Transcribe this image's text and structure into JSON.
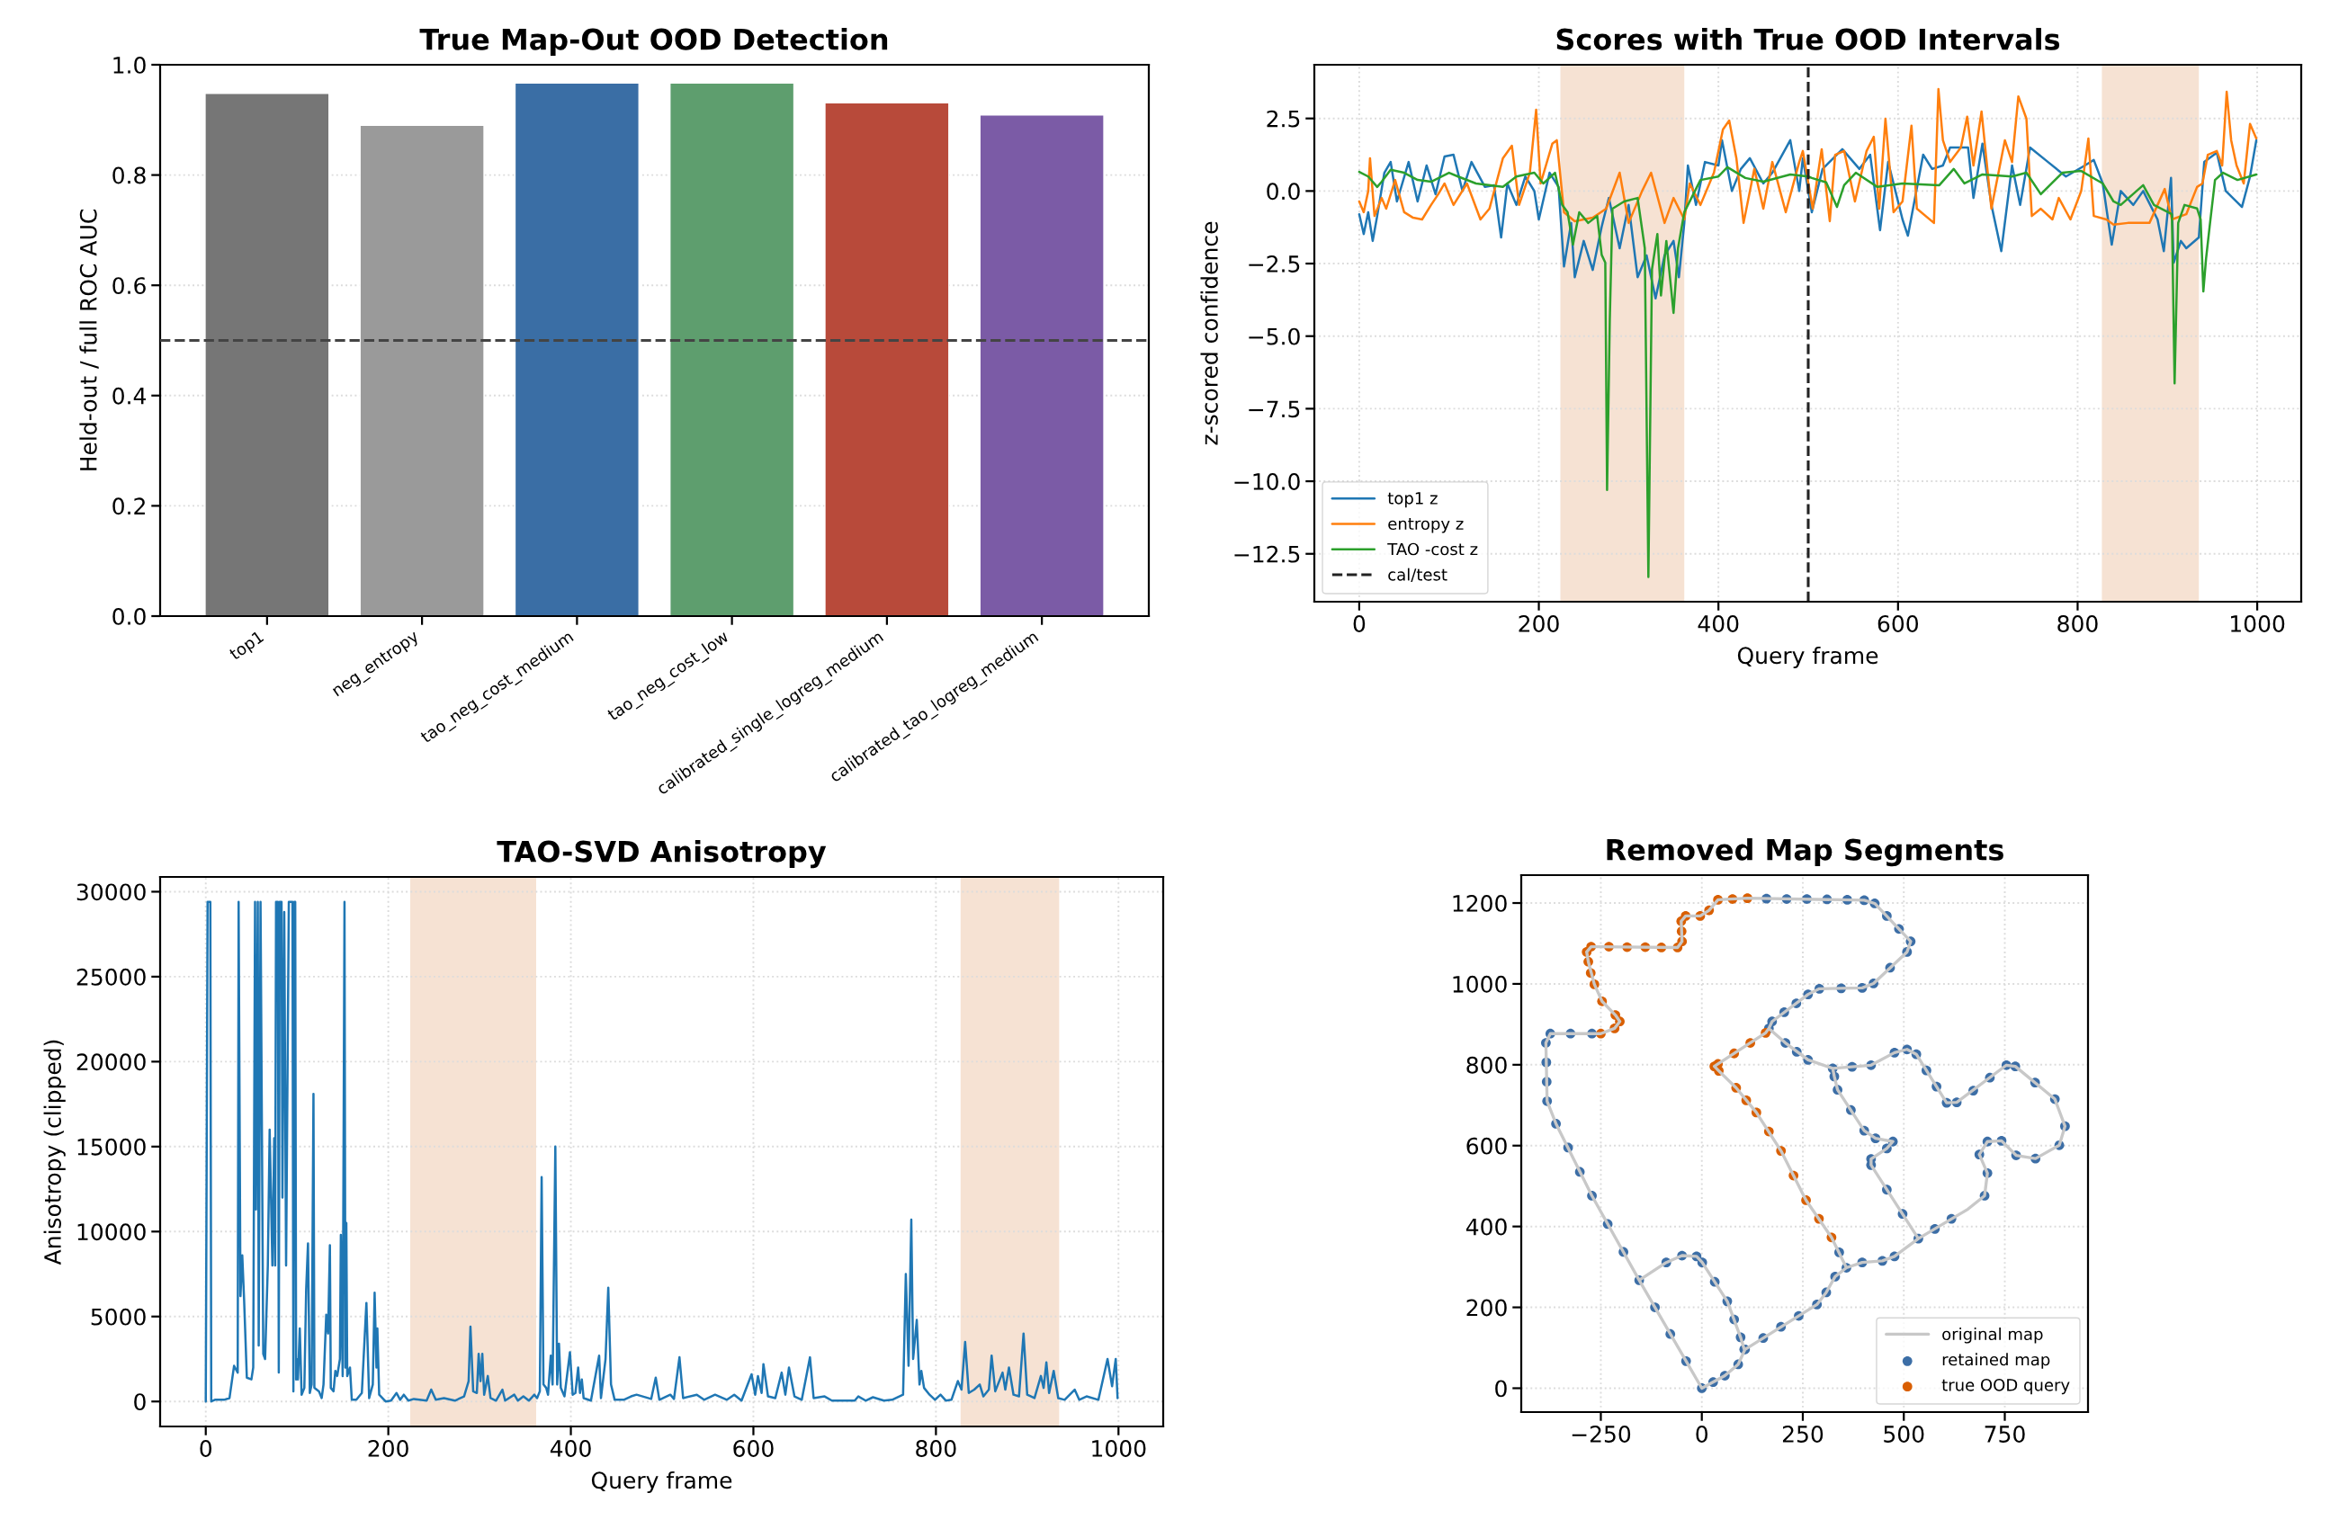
{
  "chart_data": [
    {
      "type": "bar",
      "title": "True Map-Out OOD Detection",
      "ylabel": "Held-out / full ROC AUC",
      "categories": [
        "top1",
        "neg_entropy",
        "tao_neg_cost_medium",
        "tao_neg_cost_low",
        "calibrated_single_logreg_medium",
        "calibrated_tao_logreg_medium"
      ],
      "values": [
        0.948,
        0.89,
        0.967,
        0.967,
        0.931,
        0.909
      ],
      "colors": [
        "#767676",
        "#9a9a9a",
        "#3a6ea5",
        "#5e9e6e",
        "#b84a3a",
        "#7b5ba6"
      ],
      "ylim": [
        0,
        1
      ],
      "yticks": [
        {
          "value": 0,
          "label": "0.0"
        },
        0.2,
        0.4,
        0.6,
        0.8,
        {
          "value": 1,
          "label": "1.0"
        }
      ],
      "grid": "y",
      "ref_lines": [
        {
          "axis": "y",
          "value": 0.5,
          "color": "#444444",
          "line_style": "dashed"
        }
      ]
    },
    {
      "type": "line",
      "title": "Scores with True OOD Intervals",
      "xlabel": "Query frame",
      "ylabel": "z-scored confidence",
      "series": [
        {
          "name": "top1 z",
          "color": "#1f77b4",
          "x": [
            0,
            5,
            10,
            15,
            20,
            28,
            35,
            42,
            55,
            65,
            75,
            85,
            95,
            105,
            115,
            125,
            140,
            150,
            158,
            165,
            175,
            185,
            195,
            200,
            212,
            222,
            228,
            236,
            240,
            250,
            260,
            270,
            278,
            290,
            300,
            310,
            320,
            330,
            340,
            350,
            356,
            362,
            366,
            375,
            385,
            400,
            404,
            415,
            425,
            435,
            450,
            460,
            480,
            490,
            494,
            504,
            516,
            538,
            557,
            569,
            580,
            589,
            605,
            611,
            628,
            638,
            650,
            658,
            678,
            684,
            694,
            704,
            715,
            727,
            736,
            747,
            767,
            787,
            808,
            818,
            828,
            838,
            848,
            862,
            873,
            889,
            896,
            904,
            907,
            915,
            921,
            935,
            941,
            955,
            965,
            983,
            992,
            999
          ],
          "values": [
            -0.8,
            -1.48,
            -0.73,
            -1.72,
            -0.86,
            0.63,
            1.0,
            -0.36,
            1.0,
            -0.36,
            0.88,
            -0.11,
            1.19,
            1.25,
            0,
            1.0,
            0.14,
            0.2,
            -1.6,
            0.26,
            -0.48,
            0.5,
            0,
            -0.98,
            0.63,
            0.14,
            -2.6,
            -1.1,
            -2.97,
            -1.72,
            -2.72,
            -1.23,
            -0.24,
            -1.97,
            -0.48,
            -2.97,
            -2.22,
            -3.7,
            -2.22,
            -1.72,
            -2.97,
            -1.1,
            0.88,
            -0.48,
            1.0,
            0.88,
            1.75,
            0,
            0.76,
            1.13,
            0.26,
            0.63,
            1.75,
            0,
            1.13,
            -0.73,
            0.76,
            1.44,
            0.76,
            1.25,
            -1.35,
            1.0,
            -0.98,
            -1.54,
            1.25,
            0.76,
            0.88,
            1.5,
            1.5,
            -0.24,
            1.63,
            -0.48,
            -2.07,
            0.88,
            -0.48,
            1.5,
            1.0,
            0.5,
            0.88,
            1.07,
            0.26,
            -1.85,
            0,
            -0.48,
            0,
            -0.98,
            -2.07,
            0.45,
            -2.47,
            -1.72,
            -1.97,
            -1.6,
            1.0,
            1.32,
            0,
            -0.55,
            0.5,
            1.75
          ]
        },
        {
          "name": "entropy z",
          "color": "#ff7f0e",
          "x": [
            0,
            5,
            10,
            12,
            17,
            25,
            30,
            40,
            50,
            60,
            70,
            80,
            88,
            95,
            105,
            120,
            135,
            145,
            160,
            170,
            178,
            190,
            197,
            202,
            215,
            220,
            228,
            240,
            260,
            275,
            290,
            300,
            315,
            325,
            340,
            350,
            362,
            368,
            380,
            395,
            405,
            412,
            420,
            428,
            440,
            450,
            460,
            475,
            490,
            494,
            505,
            515,
            524,
            530,
            540,
            552,
            565,
            573,
            579,
            586,
            595,
            605,
            615,
            621,
            640,
            645,
            650,
            658,
            670,
            677,
            684,
            693,
            704,
            719,
            727,
            734,
            743,
            749,
            759,
            772,
            779,
            792,
            804,
            812,
            818,
            832,
            840,
            856,
            880,
            897,
            905,
            921,
            933,
            939,
            945,
            955,
            961,
            966,
            971,
            977,
            985,
            992,
            999
          ],
          "values": [
            -0.36,
            -0.73,
            0,
            1.13,
            -0.86,
            -0.24,
            -0.61,
            0.38,
            -0.73,
            -0.92,
            -0.98,
            -0.48,
            -0.11,
            0.26,
            -0.48,
            0.26,
            -0.98,
            -0.61,
            1.13,
            1.56,
            -0.48,
            0.63,
            2.8,
            0.26,
            1.63,
            1.75,
            -0.73,
            -1.04,
            -0.92,
            -0.61,
            0.63,
            -1.1,
            0,
            0.63,
            -1.1,
            -0.24,
            -0.98,
            0.26,
            -0.48,
            0.63,
            2.12,
            2.43,
            1.13,
            -1.1,
            0.76,
            -0.61,
            1.0,
            -0.73,
            1.0,
            1.38,
            -0.61,
            1.44,
            -1.04,
            1.25,
            1.38,
            -0.36,
            1.38,
            1.87,
            -0.61,
            2.49,
            -0.73,
            -0.36,
            2.25,
            -0.61,
            -1.1,
            3.51,
            1.75,
            1.0,
            1.5,
            2.56,
            0.88,
            2.74,
            -0.61,
            1.75,
            1.0,
            3.26,
            2.49,
            -0.86,
            -0.61,
            -0.98,
            -0.24,
            -0.98,
            0,
            1.81,
            -0.86,
            -0.98,
            -1.16,
            -1.1,
            -1.1,
            0.07,
            -0.98,
            -0.8,
            0.14,
            0.26,
            1.25,
            1.38,
            0.88,
            3.42,
            1.75,
            0.88,
            0.26,
            2.31,
            1.81
          ]
        },
        {
          "name": "TAO -cost z",
          "color": "#2ca02c",
          "x": [
            0,
            10,
            20,
            25,
            35,
            50,
            65,
            80,
            100,
            110,
            130,
            160,
            175,
            195,
            205,
            218,
            226,
            232,
            238,
            245,
            255,
            265,
            270,
            274,
            276,
            279,
            282,
            295,
            310,
            318,
            322,
            326,
            332,
            336,
            342,
            350,
            355,
            362,
            380,
            400,
            410,
            430,
            450,
            480,
            500,
            504,
            520,
            532,
            540,
            553,
            577,
            605,
            646,
            662,
            674,
            694,
            727,
            743,
            759,
            783,
            804,
            828,
            840,
            848,
            873,
            885,
            905,
            908,
            912,
            919,
            933,
            937,
            940,
            943,
            947,
            953,
            962,
            978,
            999
          ],
          "values": [
            0.66,
            0.5,
            0.14,
            0.32,
            0.73,
            0.63,
            0.38,
            0.32,
            0.63,
            0.5,
            0.26,
            0.14,
            0.5,
            0.63,
            0.26,
            0.63,
            -0.48,
            -0.73,
            -1.85,
            -0.73,
            -1.1,
            -0.86,
            -2.2,
            -2.47,
            -10.3,
            -4.45,
            -0.61,
            -0.36,
            -0.24,
            -1.97,
            -13.3,
            -2.7,
            -1.48,
            -3.6,
            -1.72,
            -4.2,
            -1.97,
            -0.73,
            0.38,
            0.5,
            0.82,
            0.45,
            0.32,
            0.57,
            0.5,
            0.45,
            0.3,
            -0.55,
            0.2,
            0.63,
            0.14,
            0.26,
            0.2,
            0.76,
            0.26,
            0.57,
            0.5,
            0.63,
            -0.11,
            0.63,
            0.69,
            0.26,
            -0.36,
            -0.48,
            0.2,
            -0.48,
            -0.8,
            -6.63,
            -1.1,
            -0.48,
            -0.6,
            -0.98,
            -3.46,
            -2.34,
            -1.23,
            0.38,
            0.63,
            0.38,
            0.57
          ]
        },
        {
          "name": "cal/test",
          "type": "line",
          "color": "#222222",
          "line_style": "dashed",
          "x": [
            500,
            500
          ],
          "values": [
            -14.15,
            4.35
          ]
        }
      ],
      "xlim": [
        -50,
        1049
      ],
      "ylim": [
        -14.15,
        4.35
      ],
      "xticks": [
        0,
        200,
        400,
        600,
        800,
        1000
      ],
      "yticks": [
        {
          "value": -12.5,
          "label": "−12.5"
        },
        {
          "value": -10,
          "label": "−10.0"
        },
        {
          "value": -7.5,
          "label": "−7.5"
        },
        {
          "value": -5,
          "label": "−5.0"
        },
        {
          "value": -2.5,
          "label": "−2.5"
        },
        {
          "value": 0,
          "label": "0.0"
        },
        2.5
      ],
      "grid": true,
      "legend": "bottom left",
      "bands": [
        {
          "axis": "x",
          "from": 224,
          "to": 362,
          "color": "#f6e2d3"
        },
        {
          "axis": "x",
          "from": 827,
          "to": 935,
          "color": "#f6e2d3"
        }
      ]
    },
    {
      "type": "line",
      "title": "TAO-SVD Anisotropy",
      "xlabel": "Query frame",
      "ylabel": "Anisotropy (clipped)",
      "series": [
        {
          "color": "#1f77b4",
          "x": [
            0,
            2,
            5,
            6,
            10,
            20,
            26,
            31,
            35,
            36,
            38,
            40,
            42,
            45,
            50,
            52,
            54,
            55,
            57,
            58,
            60,
            63,
            65,
            68,
            70,
            73,
            75,
            76,
            77,
            79,
            80,
            81,
            83,
            84,
            86,
            88,
            91,
            95,
            96,
            97,
            98,
            99,
            100,
            101,
            103,
            105,
            108,
            110,
            112,
            114,
            116,
            118,
            119,
            124,
            127,
            129,
            132,
            134,
            136,
            137,
            140,
            142,
            144,
            147,
            148,
            150,
            152,
            153,
            154,
            155,
            158,
            160,
            165,
            171,
            176,
            179,
            183,
            185,
            187,
            188,
            190,
            197,
            203,
            209,
            213,
            217,
            222,
            228,
            242,
            247,
            252,
            261,
            273,
            283,
            288,
            290,
            293,
            297,
            299,
            301,
            303,
            305,
            309,
            312,
            318,
            325,
            328,
            338,
            342,
            348,
            354,
            360,
            363,
            366,
            368,
            370,
            373,
            375,
            378,
            380,
            383,
            385,
            387,
            389,
            393,
            399,
            402,
            405,
            408,
            410,
            412,
            414,
            422,
            431,
            433,
            438,
            441,
            444,
            448,
            458,
            466,
            472,
            488,
            493,
            497,
            509,
            513,
            519,
            523,
            538,
            546,
            558,
            571,
            579,
            587,
            598,
            602,
            605,
            609,
            611,
            616,
            624,
            631,
            635,
            639,
            645,
            653,
            662,
            666,
            678,
            686,
            711,
            715,
            723,
            731,
            743,
            752,
            764,
            767,
            770,
            773,
            775,
            779,
            782,
            784,
            787,
            793,
            799,
            805,
            811,
            817,
            824,
            828,
            832,
            836,
            842,
            848,
            852,
            858,
            861,
            865,
            873,
            876,
            880,
            885,
            891,
            896,
            900,
            908,
            915,
            918,
            921,
            924,
            929,
            934,
            941,
            952,
            957,
            965,
            978,
            988,
            993,
            997,
            999
          ],
          "values": [
            0,
            29400,
            29400,
            0,
            100,
            100,
            200,
            2100,
            1700,
            29400,
            6200,
            8600,
            6000,
            1400,
            1300,
            2000,
            29400,
            11300,
            29400,
            3300,
            29400,
            2800,
            2500,
            8000,
            16000,
            8000,
            15500,
            8000,
            29400,
            29400,
            1700,
            29400,
            29400,
            12000,
            28800,
            8000,
            29400,
            29400,
            600,
            29400,
            29400,
            1300,
            2500,
            1300,
            4300,
            400,
            800,
            6600,
            9300,
            500,
            1000,
            18100,
            800,
            600,
            200,
            1000,
            5100,
            4000,
            9200,
            800,
            600,
            1800,
            1500,
            2500,
            9800,
            1500,
            29400,
            2000,
            10500,
            1500,
            2000,
            100,
            100,
            500,
            5800,
            200,
            1000,
            6400,
            2000,
            4300,
            400,
            0,
            50,
            500,
            100,
            400,
            50,
            150,
            50,
            700,
            100,
            200,
            50,
            300,
            1200,
            4400,
            600,
            500,
            2800,
            1200,
            2800,
            400,
            1500,
            200,
            50,
            700,
            50,
            400,
            50,
            300,
            50,
            400,
            200,
            600,
            13200,
            1000,
            800,
            400,
            2700,
            1000,
            15000,
            1000,
            3400,
            800,
            300,
            2900,
            400,
            500,
            2000,
            500,
            1300,
            200,
            50,
            2700,
            200,
            2500,
            6700,
            1000,
            100,
            100,
            300,
            400,
            150,
            1400,
            100,
            400,
            150,
            2600,
            200,
            400,
            100,
            400,
            100,
            400,
            50,
            1600,
            400,
            1500,
            500,
            2200,
            300,
            200,
            1700,
            400,
            2000,
            300,
            100,
            2600,
            200,
            300,
            50,
            50,
            300,
            50,
            250,
            50,
            100,
            400,
            7500,
            2100,
            10700,
            2500,
            4800,
            1000,
            1800,
            800,
            400,
            100,
            400,
            50,
            100,
            1200,
            700,
            3500,
            500,
            700,
            1000,
            300,
            700,
            2700,
            600,
            1700,
            700,
            2000,
            400,
            300,
            4000,
            400,
            200,
            1500,
            800,
            2300,
            500,
            1800,
            200,
            100,
            700,
            100,
            300,
            100,
            2500,
            900,
            2500,
            200
          ]
        }
      ],
      "xlim": [
        -50,
        1049
      ],
      "ylim": [
        -1470,
        30870
      ],
      "xticks": [
        0,
        200,
        400,
        600,
        800,
        1000
      ],
      "yticks": [
        0,
        5000,
        10000,
        15000,
        20000,
        25000,
        30000
      ],
      "grid": true,
      "bands": [
        {
          "axis": "x",
          "from": 224,
          "to": 362,
          "color": "#f6e2d3"
        },
        {
          "axis": "x",
          "from": 827,
          "to": 935,
          "color": "#f6e2d3"
        }
      ]
    },
    {
      "type": "scatter",
      "title": "Removed Map Segments",
      "series": [
        {
          "name": "original map",
          "type": "line",
          "color": "#c8c8c8",
          "x": [
            0,
            -155,
            -272,
            -361,
            -383,
            -386,
            null,
            -386,
            -375,
            -272,
            -250,
            -216,
            -203,
            null,
            -203,
            -214,
            -247,
            -266,
            -281,
            -285,
            null,
            -285,
            -274,
            -60,
            -49,
            null,
            -49,
            -51,
            null,
            -51,
            -40,
            -4,
            18,
            40,
            113,
            402,
            428,
            517,
            null,
            517,
            508,
            425,
            397,
            291,
            263,
            174,
            166,
            158,
            40,
            31,
            null,
            31,
            42,
            85,
            135,
            196,
            258,
            321,
            358,
            null,
            358,
            330,
            308,
            285,
            107,
            90,
            57,
            0,
            null,
            166,
            207,
            263,
            324,
            419,
            477,
            508,
            531,
            606,
            631,
            754,
            776,
            874,
            899,
            null,
            899,
            885,
            826,
            778,
            742,
            707,
            687,
            null,
            687,
            707,
            null,
            707,
            700,
            659,
            536,
            477,
            447,
            397,
            358,
            null,
            324,
            328,
            336,
            402,
            430,
            473,
            null,
            473,
            458,
            419,
            419,
            null,
            419,
            536,
            null,
            -155,
            -88,
            -49,
            -13,
            1,
            63,
            96,
            105
          ],
          "values": [
            0,
            267,
            476,
            654,
            710,
            854,
            null,
            854,
            877,
            877,
            877,
            890,
            907,
            null,
            907,
            923,
            957,
            999,
            1055,
            1079,
            null,
            1079,
            1092,
            1090,
            1105,
            null,
            1105,
            1155,
            null,
            1155,
            1168,
            1168,
            1182,
            1208,
            1212,
            1207,
            1199,
            1105,
            null,
            1105,
            1079,
            1001,
            990,
            988,
            974,
            907,
            890,
            879,
            802,
            796,
            null,
            796,
            785,
            743,
            682,
            587,
            465,
            373,
            298,
            null,
            298,
            276,
            237,
            207,
            96,
            59,
            31,
            0,
            null,
            890,
            854,
            812,
            791,
            799,
            830,
            838,
            826,
            706,
            707,
            799,
            796,
            715,
            648,
            null,
            648,
            601,
            568,
            576,
            612,
            610,
            578,
            null,
            578,
            532,
            null,
            532,
            476,
            443,
            370,
            326,
            315,
            311,
            298,
            null,
            791,
            771,
            738,
            637,
            618,
            610,
            null,
            610,
            593,
            567,
            552,
            null,
            552,
            370,
            null,
            267,
            311,
            328,
            326,
            311,
            215,
            126,
            96
          ]
        },
        {
          "name": "retained map",
          "color": "#3c6ea6",
          "marker": "circle",
          "x": [
            0,
            -39,
            -78,
            -116,
            -155,
            -194,
            -233,
            -272,
            -302,
            -331,
            -361,
            -383,
            -384,
            -385,
            -386,
            -375,
            -325,
            -272,
            160,
            210,
            260,
            310,
            360,
            402,
            428,
            458,
            488,
            517,
            508,
            466,
            425,
            397,
            345,
            291,
            263,
            234,
            204,
            174,
            166,
            340,
            358,
            330,
            308,
            285,
            240,
            196,
            152,
            107,
            90,
            57,
            28,
            207,
            235,
            263,
            324,
            372,
            419,
            477,
            508,
            531,
            556,
            581,
            606,
            631,
            672,
            713,
            754,
            776,
            825,
            874,
            899,
            885,
            826,
            778,
            742,
            707,
            687,
            707,
            700,
            618,
            577,
            536,
            477,
            447,
            397,
            328,
            336,
            369,
            402,
            430,
            473,
            458,
            419,
            419,
            458,
            497,
            -88,
            -49,
            -13,
            1,
            32,
            63,
            80,
            96,
            105
          ],
          "values": [
            0,
            67,
            134,
            200,
            267,
            337,
            406,
            476,
            535,
            595,
            654,
            710,
            758,
            806,
            854,
            877,
            877,
            877,
            1211,
            1210,
            1210,
            1209,
            1208,
            1207,
            1199,
            1168,
            1136,
            1105,
            1079,
            1040,
            1001,
            990,
            989,
            988,
            974,
            952,
            930,
            907,
            890,
            336,
            298,
            276,
            237,
            207,
            179,
            152,
            124,
            96,
            59,
            31,
            15,
            854,
            832,
            812,
            791,
            795,
            799,
            830,
            838,
            826,
            786,
            746,
            706,
            707,
            736,
            768,
            799,
            796,
            756,
            715,
            648,
            601,
            568,
            576,
            612,
            610,
            578,
            532,
            476,
            419,
            394,
            370,
            326,
            315,
            311,
            771,
            738,
            688,
            637,
            618,
            610,
            593,
            567,
            552,
            491,
            431,
            311,
            328,
            326,
            311,
            263,
            215,
            170,
            126,
            96
          ]
        },
        {
          "name": "true OOD query",
          "color": "#d95f02",
          "marker": "circle",
          "x": [
            -250,
            -216,
            -203,
            -214,
            -247,
            -266,
            -275,
            -281,
            -285,
            -274,
            -230,
            -185,
            -140,
            -100,
            -60,
            -49,
            -50,
            -51,
            -40,
            -4,
            18,
            40,
            76,
            113,
            158,
            120,
            80,
            40,
            31,
            42,
            85,
            110,
            135,
            166,
            196,
            227,
            258,
            290,
            321
          ],
          "values": [
            877,
            890,
            907,
            923,
            957,
            999,
            1027,
            1055,
            1079,
            1092,
            1092,
            1091,
            1091,
            1090,
            1090,
            1105,
            1130,
            1155,
            1168,
            1168,
            1182,
            1208,
            1210,
            1212,
            879,
            854,
            828,
            802,
            796,
            785,
            743,
            712,
            682,
            635,
            587,
            526,
            465,
            419,
            373
          ]
        }
      ],
      "xlim": [
        -447,
        956
      ],
      "ylim": [
        -59,
        1269
      ],
      "xticks": [
        {
          "value": -250,
          "label": "−250"
        },
        0,
        250,
        500,
        750
      ],
      "yticks": [
        0,
        200,
        400,
        600,
        800,
        1000,
        1200
      ],
      "grid": true,
      "legend": "bottom right"
    }
  ]
}
